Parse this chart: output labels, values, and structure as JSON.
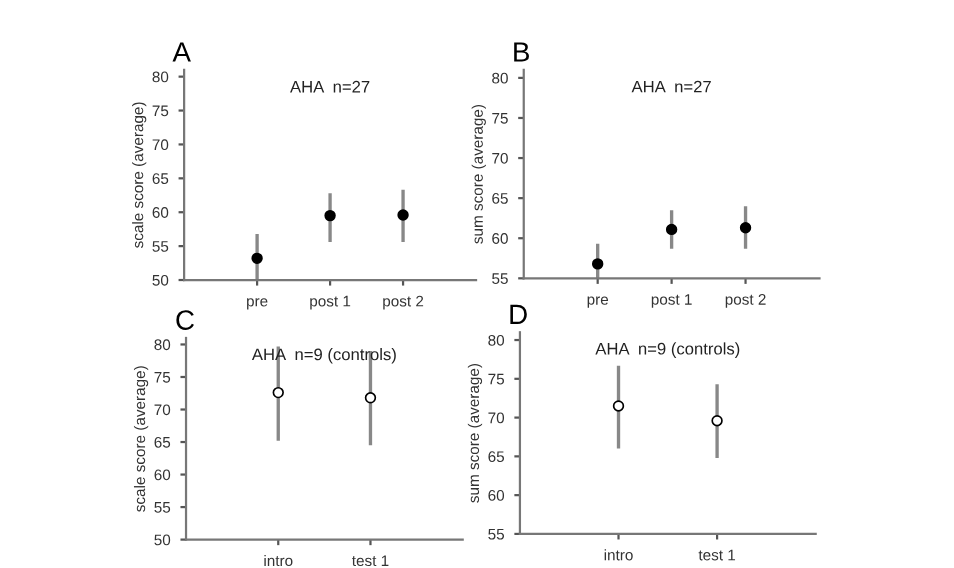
{
  "chart_data": [
    {
      "type": "scatter",
      "title": "A",
      "subtitle": "AHA  n=27",
      "ylabel": "scale score (average)",
      "categories": [
        "pre",
        "post 1",
        "post 2"
      ],
      "ylim": [
        50,
        81
      ],
      "yticks": [
        50,
        55,
        60,
        65,
        70,
        75,
        80
      ],
      "grid": false,
      "marker": "circle",
      "series": [
        {
          "color": "#000000",
          "values": [
            53.2,
            59.5,
            59.6
          ],
          "errors": [
            [
              50,
              56.8
            ],
            [
              55.6,
              62.8
            ],
            [
              55.6,
              63.3
            ]
          ]
        }
      ]
    },
    {
      "type": "scatter",
      "title": "B",
      "subtitle": "AHA  n=27",
      "ylabel": "sum score (average)",
      "categories": [
        "pre",
        "post 1",
        "post 2"
      ],
      "ylim": [
        55,
        81
      ],
      "yticks": [
        55,
        60,
        65,
        70,
        75,
        80
      ],
      "grid": false,
      "marker": "circle",
      "series": [
        {
          "color": "#000000",
          "values": [
            56.8,
            61.1,
            61.3
          ],
          "errors": [
            [
              55,
              59.3
            ],
            [
              58.7,
              63.5
            ],
            [
              58.7,
              64
            ]
          ]
        }
      ]
    },
    {
      "type": "scatter",
      "title": "C",
      "subtitle": "AHA  n=9 (controls)",
      "ylabel": "scale score (average)",
      "categories": [
        "intro",
        "test 1"
      ],
      "ylim": [
        50,
        81
      ],
      "yticks": [
        50,
        55,
        60,
        65,
        70,
        75,
        80
      ],
      "grid": false,
      "marker": "circle",
      "series": [
        {
          "color": "#ffffff",
          "values": [
            72.6,
            71.8
          ],
          "errors": [
            [
              65.2,
              79.7
            ],
            [
              64.5,
              79
            ]
          ]
        }
      ]
    },
    {
      "type": "scatter",
      "title": "D",
      "subtitle": "AHA  n=9 (controls)",
      "ylabel": "sum score (average)",
      "categories": [
        "intro",
        "test 1"
      ],
      "ylim": [
        55,
        81
      ],
      "yticks": [
        55,
        60,
        65,
        70,
        75,
        80
      ],
      "grid": false,
      "marker": "circle",
      "series": [
        {
          "color": "#ffffff",
          "values": [
            71.5,
            69.6
          ],
          "errors": [
            [
              66,
              76.7
            ],
            [
              64.8,
              74.3
            ]
          ]
        }
      ]
    }
  ]
}
